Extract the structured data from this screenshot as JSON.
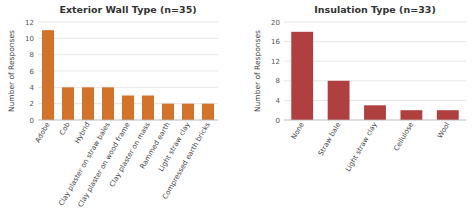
{
  "chart_data": [
    {
      "type": "bar",
      "title": "Exterior Wall Type (n=35)",
      "categories": [
        "Adobe",
        "Cob",
        "Hybrid",
        "Clay plaster on straw bales",
        "Clay plaster on wood frame",
        "Clay plaster on mass",
        "Rammed earth",
        "Light straw clay",
        "Compressed earth bricks"
      ],
      "values": [
        11,
        4,
        4,
        4,
        3,
        3,
        2,
        2,
        2
      ],
      "color": "#d4722a",
      "ylabel": "Number of Responses",
      "ylim": [
        0,
        12
      ],
      "yticks": [
        0,
        2,
        4,
        6,
        8,
        10,
        12
      ],
      "grid": true
    },
    {
      "type": "bar",
      "title": "Insulation Type (n=33)",
      "categories": [
        "None",
        "Straw bale",
        "Light straw clay",
        "Cellulose",
        "Wool"
      ],
      "values": [
        18,
        8,
        3,
        2,
        2
      ],
      "color": "#b04040",
      "ylabel": "Number of Responses",
      "ylim": [
        0,
        20
      ],
      "yticks": [
        0,
        4,
        8,
        12,
        16,
        20
      ],
      "grid": true
    }
  ]
}
